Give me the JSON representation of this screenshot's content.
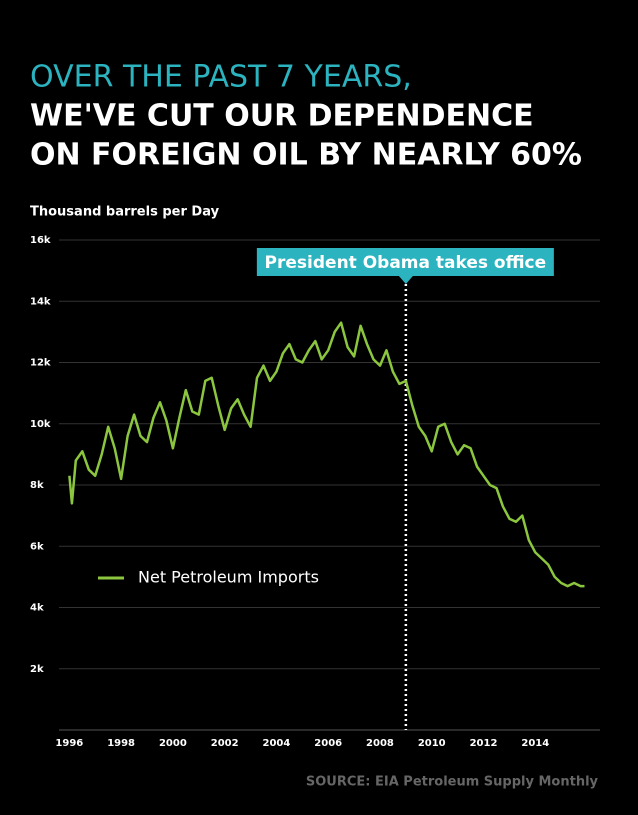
{
  "chart_data": {
    "type": "line",
    "title_lines": [
      "OVER THE PAST 7 YEARS,",
      "WE'VE CUT OUR DEPENDENCE",
      "ON FOREIGN OIL BY NEARLY 60%"
    ],
    "y_label": "Thousand barrels per Day",
    "source": "SOURCE: EIA Petroleum Supply Monthly",
    "annotation": {
      "text": "President Obama takes office",
      "x": 2009
    },
    "x": [
      1996.0,
      1996.1,
      1996.25,
      1996.5,
      1996.75,
      1997.0,
      1997.25,
      1997.5,
      1997.75,
      1998.0,
      1998.25,
      1998.5,
      1998.75,
      1999.0,
      1999.25,
      1999.5,
      1999.75,
      2000.0,
      2000.25,
      2000.5,
      2000.75,
      2001.0,
      2001.25,
      2001.5,
      2001.75,
      2002.0,
      2002.25,
      2002.5,
      2002.75,
      2003.0,
      2003.25,
      2003.5,
      2003.75,
      2004.0,
      2004.25,
      2004.5,
      2004.75,
      2005.0,
      2005.25,
      2005.5,
      2005.75,
      2006.0,
      2006.25,
      2006.5,
      2006.75,
      2007.0,
      2007.25,
      2007.5,
      2007.75,
      2008.0,
      2008.25,
      2008.5,
      2008.75,
      2009.0,
      2009.25,
      2009.5,
      2009.75,
      2010.0,
      2010.25,
      2010.5,
      2010.75,
      2011.0,
      2011.25,
      2011.5,
      2011.75,
      2012.0,
      2012.25,
      2012.5,
      2012.75,
      2013.0,
      2013.25,
      2013.5,
      2013.75,
      2014.0,
      2014.25,
      2014.5,
      2014.75,
      2015.0,
      2015.25,
      2015.5,
      2015.75,
      2015.9
    ],
    "series": [
      {
        "name": "Net Petroleum Imports",
        "color": "#8cc63f",
        "values": [
          8300,
          7400,
          8800,
          9100,
          8500,
          8300,
          9000,
          9900,
          9200,
          8200,
          9600,
          10300,
          9600,
          9400,
          10200,
          10700,
          10100,
          9200,
          10200,
          11100,
          10400,
          10300,
          11400,
          11500,
          10600,
          9800,
          10500,
          10800,
          10300,
          9900,
          11500,
          11900,
          11400,
          11700,
          12300,
          12600,
          12100,
          12000,
          12400,
          12700,
          12100,
          12400,
          13000,
          13300,
          12500,
          12200,
          13200,
          12600,
          12100,
          11900,
          12400,
          11700,
          11300,
          11400,
          10600,
          9900,
          9600,
          9100,
          9900,
          10000,
          9400,
          9000,
          9300,
          9200,
          8600,
          8300,
          8000,
          7900,
          7300,
          6900,
          6800,
          7000,
          6200,
          5800,
          5600,
          5400,
          5000,
          4800,
          4700,
          4800,
          4700,
          4700
        ]
      }
    ],
    "xlim": [
      1995.6,
      2016.5
    ],
    "xticks": [
      1996,
      1998,
      2000,
      2002,
      2004,
      2006,
      2008,
      2010,
      2012,
      2014
    ],
    "ylim": [
      0,
      16000
    ],
    "yticks": [
      {
        "value": 2000,
        "label": "2k"
      },
      {
        "value": 4000,
        "label": "4k"
      },
      {
        "value": 6000,
        "label": "6k"
      },
      {
        "value": 8000,
        "label": "8k"
      },
      {
        "value": 10000,
        "label": "10k"
      },
      {
        "value": 12000,
        "label": "12k"
      },
      {
        "value": 14000,
        "label": "14k"
      },
      {
        "value": 16000,
        "label": "16k"
      }
    ],
    "grid": true
  }
}
